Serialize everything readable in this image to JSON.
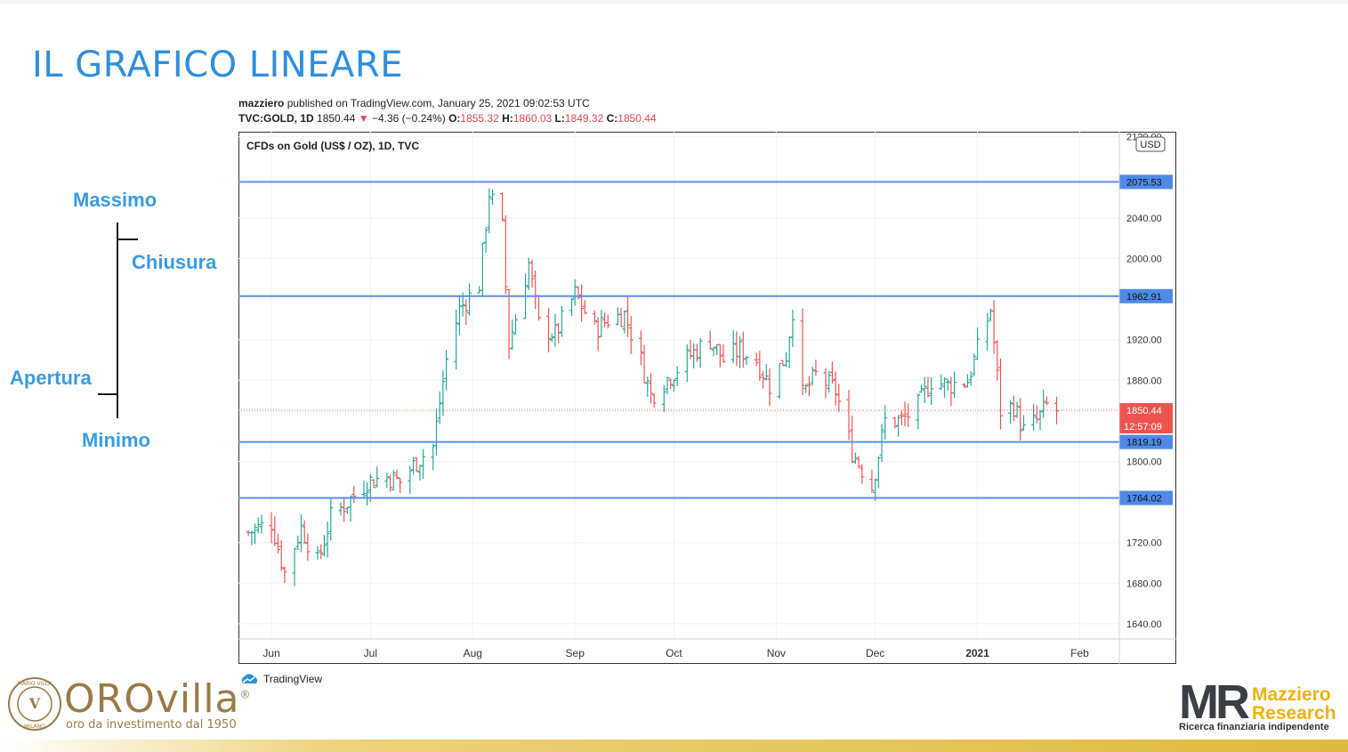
{
  "slide": {
    "title": "IL GRAFICO LINEARE",
    "legend": {
      "high": "Massimo",
      "close": "Chiusura",
      "open": "Apertura",
      "low": "Minimo"
    }
  },
  "info": {
    "author": "mazziero",
    "published": " published on TradingView.com, January 25, 2021 09:02:53 UTC",
    "symbol": "TVC:GOLD, 1D",
    "last": "1850.44",
    "change": "−4.36 (−0.24%)",
    "o_label": "O:",
    "o": "1855.32",
    "h_label": "H:",
    "h": "1860.03",
    "l_label": "L:",
    "l": "1849.32",
    "c_label": "C:",
    "c": "1850.44"
  },
  "chart_data": {
    "type": "ohlc",
    "title": "CFDs on Gold (US$ / OZ), 1D, TVC",
    "currency": "USD",
    "ylim": [
      1625,
      2125
    ],
    "y_ticks": [
      "2120.00",
      "2040.00",
      "2000.00",
      "1920.00",
      "1880.00",
      "1800.00",
      "1720.00",
      "1680.00",
      "1640.00"
    ],
    "x_labels": [
      {
        "label": "Jun",
        "date": "2020-06-01"
      },
      {
        "label": "Jul",
        "date": "2020-07-01"
      },
      {
        "label": "Aug",
        "date": "2020-08-01"
      },
      {
        "label": "Sep",
        "date": "2020-09-01"
      },
      {
        "label": "Oct",
        "date": "2020-10-01"
      },
      {
        "label": "Nov",
        "date": "2020-11-01"
      },
      {
        "label": "Dec",
        "date": "2020-12-01"
      },
      {
        "label": "2021",
        "date": "2021-01-01"
      },
      {
        "label": "Feb",
        "date": "2021-02-01"
      }
    ],
    "x_range": [
      "2020-05-22",
      "2021-02-13"
    ],
    "horizontal_levels": [
      "2075.53",
      "1962.91",
      "1819.19",
      "1764.02"
    ],
    "last_price": "1850.44",
    "countdown": "12:57:09",
    "colors": {
      "up": "#26a69a",
      "down": "#ef5350",
      "level": "#5b8def",
      "label_bg": "#4f8ae8"
    },
    "points": [
      {
        "date": "2020-05-25",
        "close": 1730
      },
      {
        "date": "2020-06-01",
        "close": 1740
      },
      {
        "date": "2020-06-05",
        "close": 1690
      },
      {
        "date": "2020-06-10",
        "close": 1735
      },
      {
        "date": "2020-06-15",
        "close": 1700
      },
      {
        "date": "2020-06-19",
        "close": 1745
      },
      {
        "date": "2020-06-24",
        "close": 1760
      },
      {
        "date": "2020-06-30",
        "close": 1780
      },
      {
        "date": "2020-07-06",
        "close": 1785
      },
      {
        "date": "2020-07-10",
        "close": 1780
      },
      {
        "date": "2020-07-15",
        "close": 1800
      },
      {
        "date": "2020-07-20",
        "close": 1815
      },
      {
        "date": "2020-07-24",
        "close": 1900
      },
      {
        "date": "2020-07-28",
        "close": 1950
      },
      {
        "date": "2020-08-03",
        "close": 1975
      },
      {
        "date": "2020-08-06",
        "close": 2065
      },
      {
        "date": "2020-08-10",
        "close": 2030
      },
      {
        "date": "2020-08-12",
        "close": 1915
      },
      {
        "date": "2020-08-18",
        "close": 1995
      },
      {
        "date": "2020-08-21",
        "close": 1935
      },
      {
        "date": "2020-08-26",
        "close": 1925
      },
      {
        "date": "2020-09-01",
        "close": 1965
      },
      {
        "date": "2020-09-07",
        "close": 1930
      },
      {
        "date": "2020-09-11",
        "close": 1940
      },
      {
        "date": "2020-09-16",
        "close": 1945
      },
      {
        "date": "2020-09-21",
        "close": 1900
      },
      {
        "date": "2020-09-24",
        "close": 1865
      },
      {
        "date": "2020-09-30",
        "close": 1885
      },
      {
        "date": "2020-10-06",
        "close": 1905
      },
      {
        "date": "2020-10-12",
        "close": 1920
      },
      {
        "date": "2020-10-16",
        "close": 1900
      },
      {
        "date": "2020-10-21",
        "close": 1910
      },
      {
        "date": "2020-10-26",
        "close": 1900
      },
      {
        "date": "2020-10-30",
        "close": 1875
      },
      {
        "date": "2020-11-04",
        "close": 1905
      },
      {
        "date": "2020-11-06",
        "close": 1950
      },
      {
        "date": "2020-11-09",
        "close": 1865
      },
      {
        "date": "2020-11-13",
        "close": 1885
      },
      {
        "date": "2020-11-19",
        "close": 1870
      },
      {
        "date": "2020-11-24",
        "close": 1810
      },
      {
        "date": "2020-11-30",
        "close": 1775
      },
      {
        "date": "2020-12-04",
        "close": 1840
      },
      {
        "date": "2020-12-09",
        "close": 1840
      },
      {
        "date": "2020-12-14",
        "close": 1855
      },
      {
        "date": "2020-12-18",
        "close": 1880
      },
      {
        "date": "2020-12-23",
        "close": 1875
      },
      {
        "date": "2020-12-29",
        "close": 1880
      },
      {
        "date": "2021-01-05",
        "close": 1950
      },
      {
        "date": "2021-01-08",
        "close": 1850
      },
      {
        "date": "2021-01-12",
        "close": 1855
      },
      {
        "date": "2021-01-15",
        "close": 1830
      },
      {
        "date": "2021-01-19",
        "close": 1840
      },
      {
        "date": "2021-01-22",
        "close": 1855
      },
      {
        "date": "2021-01-25",
        "close": 1850
      }
    ]
  },
  "footer": {
    "tradingview": "TradingView",
    "orovilla": "OROvilla",
    "orovilla_reg": "®",
    "orovilla_sub": "oro da investimento dal 1950",
    "seal_text": "MARIO VILLA · MILANO",
    "mr_letters": "MR",
    "mr_name_1": "Mazziero",
    "mr_name_2": "Research",
    "mr_tag": "Ricerca finanziaria indipendente"
  }
}
